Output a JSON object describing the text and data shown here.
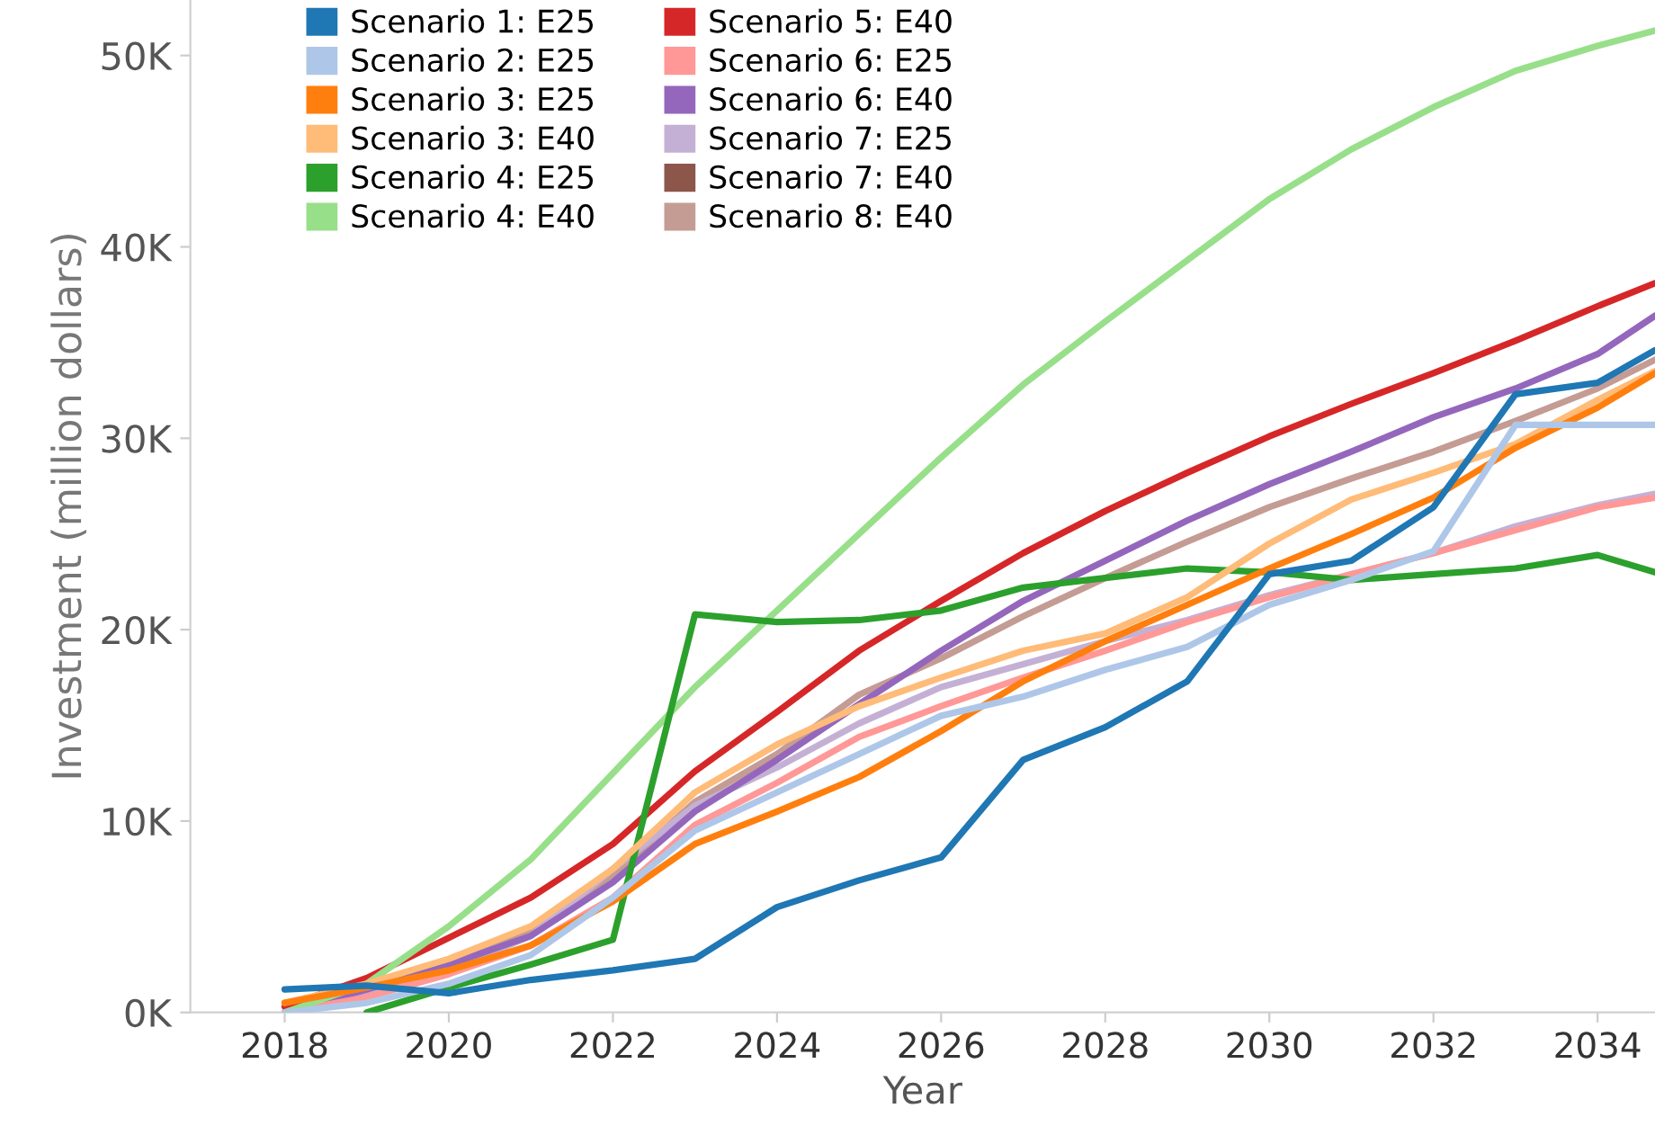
{
  "chart_data": {
    "type": "line",
    "xlabel": "Year",
    "ylabel": "Investment (million dollars)",
    "x": [
      2018,
      2019,
      2020,
      2021,
      2022,
      2023,
      2024,
      2025,
      2026,
      2027,
      2028,
      2029,
      2030,
      2031,
      2032,
      2033,
      2034,
      2034.7
    ],
    "xlim": [
      2016.85,
      2034.7
    ],
    "xticks": [
      2018,
      2020,
      2022,
      2024,
      2026,
      2028,
      2030,
      2032,
      2034
    ],
    "ylim": [
      0,
      52900
    ],
    "yticks": [
      {
        "value": 0,
        "label": "0K"
      },
      {
        "value": 10000,
        "label": "10K"
      },
      {
        "value": 20000,
        "label": "20K"
      },
      {
        "value": 30000,
        "label": "30K"
      },
      {
        "value": 40000,
        "label": "40K"
      },
      {
        "value": 50000,
        "label": "50K"
      }
    ],
    "grid": false,
    "legend": "top left",
    "marker": "none",
    "line_style": "solid",
    "series": [
      {
        "name": "Scenario 1: E25",
        "color": "#1f77b4",
        "values": [
          1200,
          1400,
          1000,
          1700,
          2200,
          2800,
          5500,
          6900,
          8100,
          13200,
          14900,
          17300,
          22900,
          23600,
          26400,
          32300,
          32900,
          34600
        ]
      },
      {
        "name": "Scenario 2: E25",
        "color": "#aec7e8",
        "values": [
          0,
          500,
          1500,
          3000,
          6000,
          9500,
          11500,
          13500,
          15500,
          16500,
          17900,
          19100,
          21300,
          22600,
          24100,
          30700,
          30700,
          30700
        ]
      },
      {
        "name": "Scenario 3: E25",
        "color": "#ff7f0e",
        "values": [
          500,
          1300,
          2200,
          3500,
          5800,
          8800,
          10500,
          12300,
          14700,
          17300,
          19400,
          21300,
          23200,
          25000,
          26900,
          29500,
          31600,
          33400
        ]
      },
      {
        "name": "Scenario 3: E40",
        "color": "#ffbb78",
        "values": [
          500,
          1500,
          2800,
          4500,
          7500,
          11500,
          14000,
          16000,
          17500,
          18900,
          19800,
          21700,
          24500,
          26800,
          28200,
          29700,
          32000,
          33500
        ]
      },
      {
        "name": "Scenario 4: E25",
        "color": "#2ca02c",
        "values": [
          null,
          0,
          1300,
          2500,
          3800,
          20800,
          20400,
          20500,
          21000,
          22200,
          22700,
          23200,
          23000,
          22600,
          22900,
          23200,
          23900,
          23000
        ]
      },
      {
        "name": "Scenario 4: E40",
        "color": "#98df8a",
        "values": [
          0,
          1500,
          4500,
          8000,
          12500,
          17000,
          21000,
          25000,
          29000,
          32800,
          36100,
          39300,
          42500,
          45100,
          47300,
          49200,
          50500,
          51300
        ]
      },
      {
        "name": "Scenario 5: E40",
        "color": "#d62728",
        "values": [
          300,
          1800,
          3900,
          6000,
          8800,
          12600,
          15700,
          18900,
          21500,
          24000,
          26200,
          28200,
          30100,
          31800,
          33400,
          35100,
          36900,
          38100
        ]
      },
      {
        "name": "Scenario 6: E25",
        "color": "#ff9896",
        "values": [
          0,
          800,
          2000,
          3500,
          6000,
          9800,
          12000,
          14400,
          16000,
          17500,
          18900,
          20400,
          21700,
          22900,
          24000,
          25200,
          26400,
          26900
        ]
      },
      {
        "name": "Scenario 6: E40",
        "color": "#9467bd",
        "values": [
          0,
          1200,
          2500,
          4000,
          6800,
          10500,
          13200,
          16100,
          18900,
          21500,
          23600,
          25700,
          27600,
          29300,
          31100,
          32600,
          34400,
          36400
        ]
      },
      {
        "name": "Scenario 7: E25",
        "color": "#c5b0d5",
        "values": [
          0,
          1000,
          2200,
          4000,
          7500,
          10800,
          12800,
          15100,
          17000,
          18200,
          19400,
          20500,
          21800,
          22900,
          24000,
          25400,
          26500,
          27100
        ]
      },
      {
        "name": "Scenario 7: E40",
        "color": "#8c564b",
        "values": [
          null,
          null,
          null,
          null,
          null,
          null,
          null,
          null,
          null,
          null,
          null,
          null,
          null,
          null,
          null,
          null,
          null,
          null
        ]
      },
      {
        "name": "Scenario 8: E40",
        "color": "#c49c94",
        "values": [
          0,
          1200,
          2500,
          4200,
          7200,
          11000,
          13500,
          16600,
          18500,
          20700,
          22700,
          24600,
          26400,
          27900,
          29300,
          30900,
          32600,
          34100
        ]
      }
    ]
  }
}
